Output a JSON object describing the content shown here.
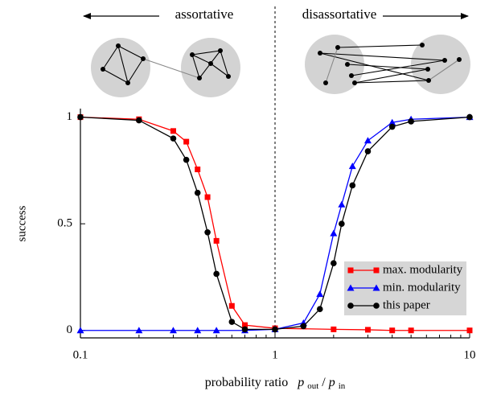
{
  "chart_data": {
    "type": "line",
    "header_left": "assortative",
    "header_right": "disassortative",
    "y_label": "success",
    "x_label": [
      "probability ratio",
      "p",
      "out",
      "/",
      "p",
      "in"
    ],
    "log_x": true,
    "xlim": [
      0.1,
      10
    ],
    "ylim": [
      -0.035,
      1.04
    ],
    "xticks": [
      0.1,
      1,
      10
    ],
    "xminorticks": [
      0.2,
      0.3,
      0.4,
      0.5,
      0.6,
      0.7,
      0.8,
      0.9,
      2,
      3,
      4,
      5,
      6,
      7,
      8,
      9
    ],
    "yticks": [
      0,
      0.5,
      1
    ],
    "divider_x": 1,
    "legend": "lower right",
    "series": [
      {
        "name": "max. modularity",
        "color": "#ff0000",
        "marker": "square",
        "x": [
          0.1,
          0.2,
          0.3,
          0.35,
          0.4,
          0.45,
          0.5,
          0.6,
          0.7,
          1,
          2,
          3,
          4,
          5,
          10
        ],
        "values": [
          1,
          0.99,
          0.935,
          0.885,
          0.755,
          0.625,
          0.42,
          0.115,
          0.025,
          0.01,
          0.005,
          0.003,
          0,
          0,
          0
        ]
      },
      {
        "name": "min. modularity",
        "color": "#0000ff",
        "marker": "triangle",
        "x": [
          0.1,
          0.2,
          0.3,
          0.4,
          0.5,
          0.7,
          1,
          1.4,
          1.7,
          2,
          2.2,
          2.5,
          3,
          4,
          5,
          10
        ],
        "values": [
          0,
          0,
          0,
          0,
          0,
          0,
          0.005,
          0.035,
          0.17,
          0.455,
          0.59,
          0.77,
          0.89,
          0.975,
          0.99,
          1
        ]
      },
      {
        "name": "this paper",
        "color": "#000000",
        "marker": "circle",
        "x": [
          0.1,
          0.2,
          0.3,
          0.35,
          0.4,
          0.45,
          0.5,
          0.6,
          0.7,
          1,
          1.4,
          1.7,
          2,
          2.2,
          2.5,
          3,
          4,
          5,
          10
        ],
        "values": [
          1,
          0.985,
          0.9,
          0.8,
          0.645,
          0.46,
          0.265,
          0.04,
          0.005,
          0.005,
          0.02,
          0.1,
          0.315,
          0.5,
          0.68,
          0.84,
          0.955,
          0.98,
          1
        ]
      }
    ]
  }
}
